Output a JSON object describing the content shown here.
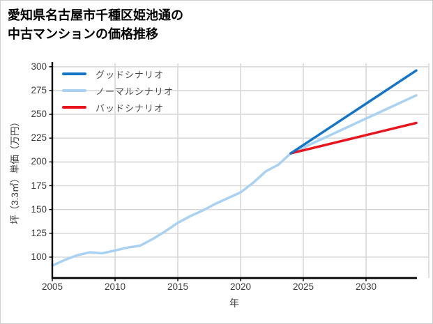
{
  "header": {
    "title_lines": [
      "愛知県名古屋市千種区姫池通の",
      "中古マンションの価格推移"
    ]
  },
  "chart_data": {
    "type": "line",
    "title": "愛知県名古屋市千種区姫池通の中古マンションの価格推移",
    "xlabel": "年",
    "ylabel": "坪（3.3㎡）単価（万円）",
    "xlim": [
      2005,
      2034
    ],
    "ylim": [
      78,
      303.5
    ],
    "xticks": [
      2005,
      2010,
      2015,
      2020,
      2025,
      2030
    ],
    "xgrid_extra": [
      2035
    ],
    "yticks": [
      100,
      125,
      150,
      175,
      200,
      225,
      250,
      275,
      300
    ],
    "grid": true,
    "legend_position": "upper-left",
    "series": [
      {
        "name": "グッドシナリオ",
        "color": "#1375c8",
        "x": [
          2024,
          2034
        ],
        "values": [
          209,
          296
        ]
      },
      {
        "name": "ノーマルシナリオ",
        "color": "#a9d1f2",
        "x": [
          2005,
          2006,
          2007,
          2008,
          2009,
          2010,
          2011,
          2012,
          2013,
          2014,
          2015,
          2016,
          2017,
          2018,
          2019,
          2020,
          2021,
          2022,
          2023,
          2024,
          2034
        ],
        "values": [
          91,
          97,
          102,
          105,
          104,
          107,
          110,
          112,
          119,
          127,
          136,
          143,
          149,
          156,
          162,
          168,
          178,
          190,
          197,
          209,
          270
        ]
      },
      {
        "name": "バッドシナリオ",
        "color": "#e8141e",
        "x": [
          2024,
          2034
        ],
        "values": [
          209,
          241
        ]
      }
    ]
  },
  "colors": {
    "grid": "#d9d9d9",
    "spine": "#000000",
    "tick_text": "#3b3b3b"
  }
}
